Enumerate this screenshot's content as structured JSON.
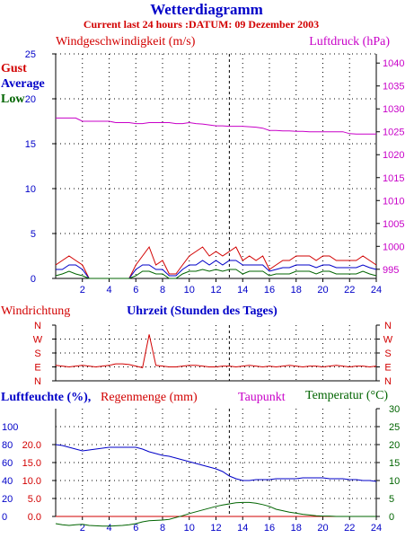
{
  "title": "Wetterdiagramm",
  "subtitle": "Current last 24 hours :DATUM: 09 Dezember 2003",
  "colors": {
    "blue": "#0000c8",
    "red": "#d20000",
    "magenta": "#c800c8",
    "green": "#006400",
    "axis": "#000000"
  },
  "chart_data": [
    {
      "type": "line",
      "panel": "wind-pressure",
      "left_title": "Windgeschwindigkeit (m/s)",
      "right_title": "Luftdruck (hPa)",
      "legend": [
        "Gust",
        "Average",
        "Low"
      ],
      "x": [
        0,
        0.5,
        1,
        1.5,
        2,
        2.5,
        3,
        3.5,
        4,
        4.5,
        5,
        5.5,
        6,
        6.5,
        7,
        7.5,
        8,
        8.5,
        9,
        9.5,
        10,
        10.5,
        11,
        11.5,
        12,
        12.5,
        13,
        13.5,
        14,
        14.5,
        15,
        15.5,
        16,
        16.5,
        17,
        17.5,
        18,
        18.5,
        19,
        19.5,
        20,
        20.5,
        21,
        21.5,
        22,
        22.5,
        23,
        23.5,
        24
      ],
      "xticks": [
        2,
        4,
        6,
        8,
        10,
        12,
        14,
        16,
        18,
        20,
        22,
        24
      ],
      "ylim_left": [
        0,
        25
      ],
      "yticks_left": [
        0,
        5,
        10,
        15,
        20,
        25
      ],
      "ylim_right": [
        993,
        1042
      ],
      "yticks_right": [
        995,
        1000,
        1005,
        1010,
        1015,
        1020,
        1025,
        1030,
        1035,
        1040
      ],
      "series": [
        {
          "name": "Gust",
          "axis": "left",
          "color": "#d20000",
          "values": [
            1.5,
            2,
            2.5,
            2,
            1.5,
            0,
            0,
            0,
            0,
            0,
            0,
            0,
            1.5,
            2.5,
            3.5,
            1.5,
            2,
            0.5,
            0.5,
            1.5,
            2.5,
            3,
            3.5,
            2.5,
            3,
            2.5,
            3,
            3.5,
            2,
            2.5,
            2,
            2.5,
            1,
            1.5,
            2,
            2,
            2.5,
            2.5,
            2.5,
            2,
            2.5,
            2.5,
            2,
            2,
            2,
            2,
            2.5,
            2,
            1.5
          ]
        },
        {
          "name": "Average",
          "axis": "left",
          "color": "#0000c8",
          "values": [
            1,
            1,
            1.5,
            1.5,
            1,
            0,
            0,
            0,
            0,
            0,
            0,
            0,
            1,
            1.5,
            1.5,
            1,
            1,
            0.3,
            0.3,
            1,
            1.5,
            1.5,
            2,
            1.5,
            2,
            1.5,
            2,
            2,
            1.5,
            1.5,
            1.5,
            1.5,
            0.8,
            1,
            1.2,
            1.2,
            1.5,
            1.5,
            1.5,
            1.2,
            1.5,
            1.5,
            1.2,
            1.2,
            1.2,
            1.2,
            1.5,
            1.2,
            1
          ]
        },
        {
          "name": "Low",
          "axis": "left",
          "color": "#006400",
          "values": [
            0.3,
            0.5,
            0.8,
            0.5,
            0.3,
            0,
            0,
            0,
            0,
            0,
            0,
            0,
            0.3,
            0.8,
            0.8,
            0.5,
            0.5,
            0,
            0,
            0.5,
            0.8,
            0.8,
            1,
            0.8,
            1,
            0.8,
            1,
            1,
            0.5,
            0.8,
            0.8,
            0.8,
            0.3,
            0.5,
            0.5,
            0.5,
            0.8,
            0.8,
            0.8,
            0.5,
            0.8,
            0.8,
            0.5,
            0.5,
            0.5,
            0.5,
            0.8,
            0.5,
            0.3
          ]
        },
        {
          "name": "Luftdruck",
          "axis": "right",
          "color": "#c800c8",
          "values": [
            1028,
            1028,
            1028,
            1028,
            1027.3,
            1027.3,
            1027.3,
            1027.3,
            1027.3,
            1027,
            1027,
            1027,
            1026.8,
            1026.8,
            1027,
            1027,
            1027,
            1027,
            1026.8,
            1026.8,
            1027,
            1026.8,
            1026.7,
            1026.5,
            1026.3,
            1026.3,
            1026.2,
            1026.2,
            1026.2,
            1026.1,
            1026,
            1025.8,
            1025.3,
            1025.3,
            1025.2,
            1025.2,
            1025.1,
            1025.1,
            1025,
            1025,
            1025,
            1025,
            1025,
            1025,
            1024.6,
            1024.5,
            1024.5,
            1024.5,
            1024.5
          ]
        }
      ]
    },
    {
      "type": "line",
      "panel": "wind-direction",
      "left_title": "Windrichtung",
      "center_title": "Uhrzeit (Stunden des Tages)",
      "yticks": [
        "N",
        "W",
        "S",
        "E",
        "N"
      ],
      "series": [
        {
          "name": "Windrichtung",
          "color": "#d20000",
          "values_deg": [
            100,
            95,
            90,
            95,
            100,
            95,
            90,
            95,
            100,
            110,
            110,
            105,
            95,
            85,
            300,
            100,
            95,
            90,
            90,
            95,
            100,
            100,
            95,
            90,
            90,
            95,
            95,
            90,
            95,
            100,
            95,
            90,
            95,
            90,
            95,
            100,
            95,
            90,
            95,
            95,
            90,
            95,
            100,
            95,
            90,
            95,
            95,
            90,
            95
          ]
        }
      ]
    },
    {
      "type": "line",
      "panel": "humidity-temperature",
      "titles": [
        "Luftfeuchte (%),",
        "Regenmenge (mm)",
        "Taupunkt",
        "Temperatur (°C)"
      ],
      "ylim_humidity": [
        0,
        120
      ],
      "yticks_humidity": [
        0,
        20,
        40,
        60,
        80,
        100
      ],
      "yticks_rain": [
        "0.0",
        "5.0",
        "10.0",
        "15.0",
        "20.0"
      ],
      "ylim_temp": [
        0,
        30
      ],
      "yticks_temp": [
        0,
        5,
        10,
        15,
        20,
        25,
        30
      ],
      "series": [
        {
          "name": "Luftfeuchte",
          "axis": "humidity",
          "color": "#0000c8",
          "values": [
            80,
            79,
            77,
            75,
            73,
            74,
            75,
            76,
            77,
            77,
            77,
            77,
            77,
            75,
            72,
            70,
            68,
            67,
            65,
            63,
            61,
            59,
            57,
            55,
            53,
            50,
            45,
            42,
            40,
            40,
            41,
            41,
            41,
            42,
            42,
            42,
            42,
            43,
            43,
            43,
            43,
            42,
            42,
            42,
            41,
            41,
            40,
            40,
            39
          ]
        },
        {
          "name": "Regenmenge",
          "axis": "rain",
          "color": "#d20000",
          "values": [
            0,
            0,
            0,
            0,
            0,
            0,
            0,
            0,
            0,
            0,
            0,
            0,
            0,
            0,
            0,
            0,
            0,
            0,
            0,
            0,
            0,
            0,
            0,
            0,
            0,
            0,
            0,
            0,
            0,
            0,
            0,
            0,
            0,
            0,
            0,
            0,
            0,
            0,
            0,
            0,
            0,
            0,
            0,
            0,
            0,
            0,
            0,
            0,
            0
          ]
        },
        {
          "name": "Temperatur",
          "axis": "temp",
          "color": "#006400",
          "values": [
            -2,
            -2.3,
            -2.5,
            -2.3,
            -2.2,
            -2.5,
            -2.6,
            -2.7,
            -2.7,
            -2.6,
            -2.5,
            -2.3,
            -2,
            -1.5,
            -1.2,
            -1.1,
            -1,
            -0.8,
            -0.3,
            0.2,
            0.8,
            1.3,
            1.8,
            2.3,
            2.8,
            3.2,
            3.5,
            3.8,
            3.9,
            3.9,
            3.7,
            3.3,
            2.8,
            2,
            1.6,
            1.2,
            0.9,
            0.6,
            0.4,
            0.2,
            0.1,
            0.1,
            0,
            0,
            0,
            0,
            0,
            0,
            0
          ]
        }
      ]
    }
  ]
}
